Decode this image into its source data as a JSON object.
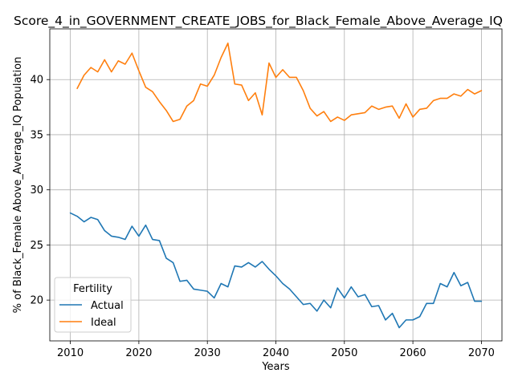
{
  "chart_data": {
    "type": "line",
    "title": "Score_4_in_GOVERNMENT_CREATE_JOBS_for_Black_Female_Above_Average_IQ",
    "xlabel": "Years",
    "ylabel": "% of Black_Female Above_Average_IQ Population",
    "xlim": [
      2007,
      2073
    ],
    "ylim": [
      16.3,
      44.6
    ],
    "xticks": [
      2010,
      2020,
      2030,
      2040,
      2050,
      2060,
      2070
    ],
    "yticks": [
      20,
      25,
      30,
      35,
      40
    ],
    "grid": true,
    "legend": {
      "title": "Fertility",
      "placement": "lower-left"
    },
    "series": [
      {
        "name": "Actual",
        "color": "#1f77b4",
        "x": [
          2010,
          2011,
          2012,
          2013,
          2014,
          2015,
          2016,
          2017,
          2018,
          2019,
          2020,
          2021,
          2022,
          2023,
          2024,
          2025,
          2026,
          2027,
          2028,
          2029,
          2030,
          2031,
          2032,
          2033,
          2034,
          2035,
          2036,
          2037,
          2038,
          2039,
          2040,
          2041,
          2042,
          2043,
          2044,
          2045,
          2046,
          2047,
          2048,
          2049,
          2050,
          2051,
          2052,
          2053,
          2054,
          2055,
          2056,
          2057,
          2058,
          2059,
          2060,
          2061,
          2062,
          2063,
          2064,
          2065,
          2066,
          2067,
          2068,
          2069,
          2070
        ],
        "values": [
          27.9,
          27.6,
          27.1,
          27.5,
          27.3,
          26.3,
          25.8,
          25.7,
          25.5,
          26.7,
          25.8,
          26.8,
          25.5,
          25.4,
          23.8,
          23.4,
          21.7,
          21.8,
          21.0,
          20.9,
          20.8,
          20.2,
          21.5,
          21.2,
          23.1,
          23.0,
          23.4,
          23.0,
          23.5,
          22.8,
          22.2,
          21.5,
          21.0,
          20.3,
          19.6,
          19.7,
          19.0,
          20.0,
          19.3,
          21.1,
          20.2,
          21.2,
          20.3,
          20.5,
          19.4,
          19.5,
          18.2,
          18.8,
          17.5,
          18.2,
          18.2,
          18.5,
          19.7,
          19.7,
          21.5,
          21.2,
          22.5,
          21.3,
          21.6,
          19.9,
          19.9
        ]
      },
      {
        "name": "Ideal",
        "color": "#ff7f0e",
        "x": [
          2011,
          2012,
          2013,
          2014,
          2015,
          2016,
          2017,
          2018,
          2019,
          2020,
          2021,
          2022,
          2023,
          2024,
          2025,
          2026,
          2027,
          2028,
          2029,
          2030,
          2031,
          2032,
          2033,
          2034,
          2035,
          2036,
          2037,
          2038,
          2039,
          2040,
          2041,
          2042,
          2043,
          2044,
          2045,
          2046,
          2047,
          2048,
          2049,
          2050,
          2051,
          2052,
          2053,
          2054,
          2055,
          2056,
          2057,
          2058,
          2059,
          2060,
          2061,
          2062,
          2063,
          2064,
          2065,
          2066,
          2067,
          2068,
          2069,
          2070
        ],
        "values": [
          39.2,
          40.4,
          41.1,
          40.7,
          41.8,
          40.7,
          41.7,
          41.4,
          42.4,
          40.8,
          39.3,
          38.9,
          38.0,
          37.2,
          36.2,
          36.4,
          37.6,
          38.1,
          39.6,
          39.4,
          40.4,
          42.0,
          43.3,
          39.6,
          39.5,
          38.1,
          38.8,
          36.8,
          41.5,
          40.2,
          40.9,
          40.2,
          40.2,
          39.0,
          37.4,
          36.7,
          37.1,
          36.2,
          36.6,
          36.3,
          36.8,
          36.9,
          37.0,
          37.6,
          37.3,
          37.5,
          37.6,
          36.5,
          37.8,
          36.6,
          37.3,
          37.4,
          38.1,
          38.3,
          38.3,
          38.7,
          38.5,
          39.1,
          38.7,
          39.0
        ]
      }
    ]
  }
}
